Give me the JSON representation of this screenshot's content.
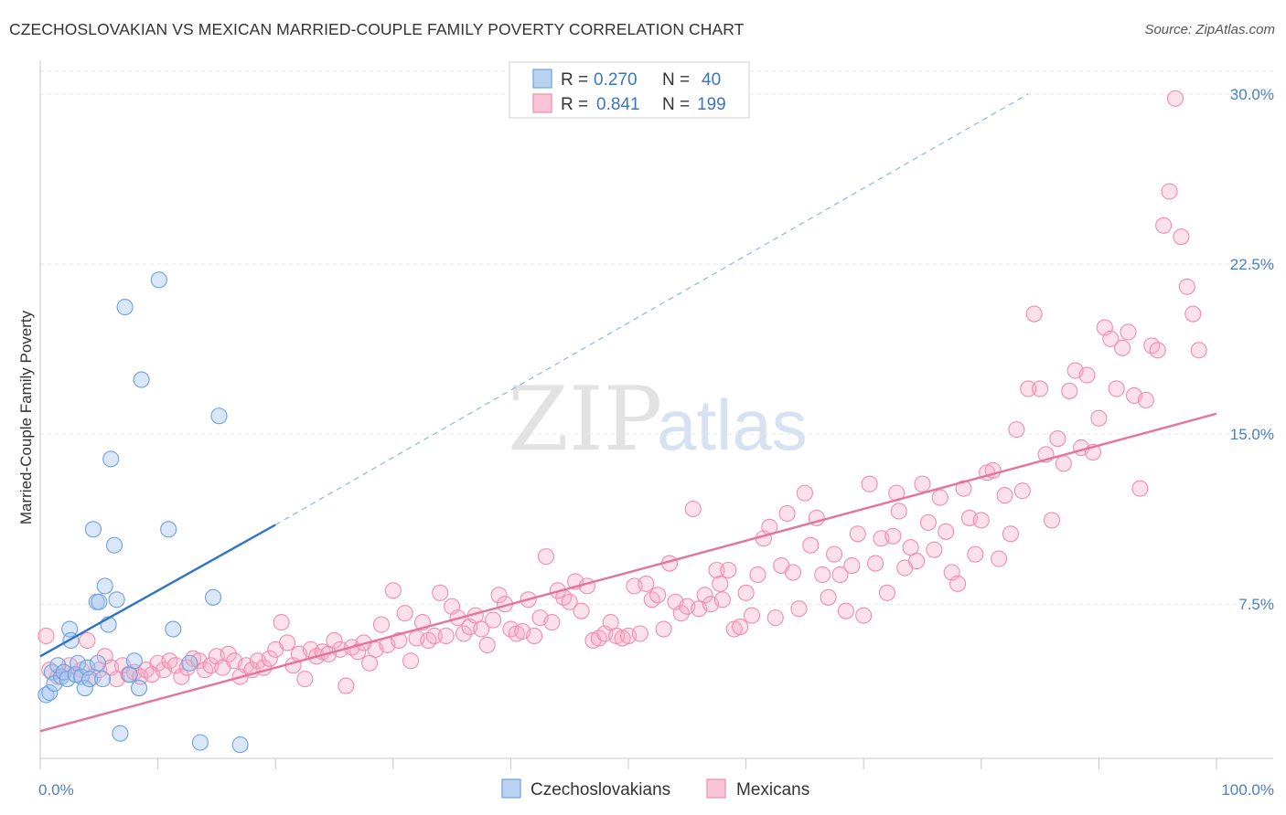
{
  "title": "CZECHOSLOVAKIAN VS MEXICAN MARRIED-COUPLE FAMILY POVERTY CORRELATION CHART",
  "source": "Source: ZipAtlas.com",
  "watermark": {
    "zip": "ZIP",
    "atlas": "atlas"
  },
  "legend": {
    "rows": [
      {
        "r_label": "R =",
        "r_value": "0.270",
        "n_label": "N =",
        "n_value": "40"
      },
      {
        "r_label": "R =",
        "r_value": "0.841",
        "n_label": "N =",
        "n_value": "199"
      }
    ]
  },
  "bottom_legend": [
    "Czechoslovakians",
    "Mexicans"
  ],
  "chart_data": {
    "type": "scatter",
    "title": "CZECHOSLOVAKIAN VS MEXICAN MARRIED-COUPLE FAMILY POVERTY CORRELATION CHART",
    "xlabel": "",
    "ylabel": "Married-Couple Family Poverty",
    "xlim": [
      0,
      100
    ],
    "ylim": [
      0.7,
      31.0
    ],
    "y_ticks": [
      7.5,
      15.0,
      22.5,
      30.0
    ],
    "y_tick_labels": [
      "7.5%",
      "15.0%",
      "22.5%",
      "30.0%"
    ],
    "x_tick_labels": [
      "0.0%",
      "100.0%"
    ],
    "colors": {
      "czech": "#6fa0e0",
      "mexican": "#f08cae",
      "czech_line": "#2e72cc",
      "mexican_line": "#e5739b"
    },
    "series": [
      {
        "name": "Czechoslovakians",
        "R": 0.27,
        "N": 40,
        "trend": {
          "x0": 0,
          "y0": 5.2,
          "x1": 20,
          "y1": 11.0,
          "dash_to_x": 84,
          "dash_to_y": 30.0
        },
        "points": [
          [
            0.5,
            3.5
          ],
          [
            0.8,
            3.6
          ],
          [
            1.0,
            4.5
          ],
          [
            1.2,
            4.0
          ],
          [
            1.5,
            4.8
          ],
          [
            1.8,
            4.3
          ],
          [
            2.0,
            4.5
          ],
          [
            2.3,
            4.2
          ],
          [
            2.5,
            6.4
          ],
          [
            2.6,
            5.9
          ],
          [
            3.0,
            4.4
          ],
          [
            3.2,
            4.9
          ],
          [
            3.5,
            4.3
          ],
          [
            3.8,
            3.8
          ],
          [
            4.0,
            4.7
          ],
          [
            4.2,
            4.2
          ],
          [
            4.5,
            10.8
          ],
          [
            4.8,
            7.6
          ],
          [
            5.0,
            7.6
          ],
          [
            5.3,
            4.2
          ],
          [
            5.5,
            8.3
          ],
          [
            5.8,
            6.6
          ],
          [
            6.0,
            13.9
          ],
          [
            6.3,
            10.1
          ],
          [
            6.5,
            7.7
          ],
          [
            6.8,
            1.8
          ],
          [
            7.2,
            20.6
          ],
          [
            7.6,
            4.4
          ],
          [
            8.0,
            5.0
          ],
          [
            8.4,
            3.8
          ],
          [
            8.6,
            17.4
          ],
          [
            10.1,
            21.8
          ],
          [
            10.9,
            10.8
          ],
          [
            11.3,
            6.4
          ],
          [
            12.7,
            4.9
          ],
          [
            13.6,
            1.4
          ],
          [
            14.7,
            7.8
          ],
          [
            15.2,
            15.8
          ],
          [
            17.0,
            1.3
          ],
          [
            4.9,
            4.9
          ]
        ]
      },
      {
        "name": "Mexicans",
        "R": 0.841,
        "N": 199,
        "trend": {
          "x0": 0,
          "y0": 1.9,
          "x1": 100,
          "y1": 15.9
        },
        "points": [
          [
            0.5,
            6.1
          ],
          [
            0.8,
            4.6
          ],
          [
            1.5,
            4.3
          ],
          [
            2.0,
            4.5
          ],
          [
            2.5,
            4.8
          ],
          [
            3.0,
            4.4
          ],
          [
            3.5,
            4.6
          ],
          [
            4.0,
            5.9
          ],
          [
            4.5,
            4.3
          ],
          [
            5.0,
            4.6
          ],
          [
            5.5,
            5.2
          ],
          [
            6.0,
            4.7
          ],
          [
            6.5,
            4.2
          ],
          [
            7.0,
            4.8
          ],
          [
            7.5,
            4.4
          ],
          [
            8.0,
            4.5
          ],
          [
            8.5,
            4.3
          ],
          [
            9.0,
            4.6
          ],
          [
            9.5,
            4.4
          ],
          [
            10.0,
            4.9
          ],
          [
            10.5,
            4.6
          ],
          [
            11.0,
            5.0
          ],
          [
            11.5,
            4.8
          ],
          [
            12.0,
            4.3
          ],
          [
            12.5,
            4.7
          ],
          [
            13.0,
            5.1
          ],
          [
            13.5,
            5.0
          ],
          [
            14.0,
            4.6
          ],
          [
            14.5,
            4.8
          ],
          [
            15.0,
            5.2
          ],
          [
            15.5,
            4.7
          ],
          [
            16.0,
            5.3
          ],
          [
            16.5,
            5.0
          ],
          [
            17.0,
            4.3
          ],
          [
            17.5,
            4.8
          ],
          [
            18.0,
            4.6
          ],
          [
            18.5,
            5.0
          ],
          [
            19.0,
            4.7
          ],
          [
            19.5,
            5.1
          ],
          [
            20.0,
            5.5
          ],
          [
            20.5,
            6.7
          ],
          [
            21.0,
            5.8
          ],
          [
            21.5,
            4.8
          ],
          [
            22.0,
            5.3
          ],
          [
            22.5,
            4.2
          ],
          [
            23.0,
            5.5
          ],
          [
            23.5,
            5.2
          ],
          [
            24.0,
            5.4
          ],
          [
            24.5,
            5.3
          ],
          [
            25.0,
            5.9
          ],
          [
            25.5,
            5.5
          ],
          [
            26.0,
            3.9
          ],
          [
            26.5,
            5.6
          ],
          [
            27.0,
            5.4
          ],
          [
            27.5,
            5.8
          ],
          [
            28.0,
            4.9
          ],
          [
            28.5,
            5.5
          ],
          [
            29.0,
            6.6
          ],
          [
            29.5,
            5.7
          ],
          [
            30.0,
            8.1
          ],
          [
            30.5,
            5.9
          ],
          [
            31.0,
            7.1
          ],
          [
            31.5,
            5.0
          ],
          [
            32.0,
            6.0
          ],
          [
            32.5,
            6.7
          ],
          [
            33.0,
            5.9
          ],
          [
            33.5,
            6.1
          ],
          [
            34.0,
            8.0
          ],
          [
            34.5,
            6.1
          ],
          [
            35.0,
            7.4
          ],
          [
            35.5,
            6.9
          ],
          [
            36.0,
            6.2
          ],
          [
            36.5,
            6.5
          ],
          [
            37.0,
            7.0
          ],
          [
            37.5,
            6.4
          ],
          [
            38.0,
            5.7
          ],
          [
            38.5,
            6.8
          ],
          [
            39.0,
            7.9
          ],
          [
            39.5,
            7.5
          ],
          [
            40.0,
            6.4
          ],
          [
            40.5,
            6.2
          ],
          [
            41.0,
            6.3
          ],
          [
            41.5,
            7.7
          ],
          [
            42.0,
            6.1
          ],
          [
            42.5,
            6.9
          ],
          [
            43.0,
            9.6
          ],
          [
            43.5,
            6.7
          ],
          [
            44.0,
            8.1
          ],
          [
            44.5,
            7.8
          ],
          [
            45.0,
            7.6
          ],
          [
            45.5,
            8.5
          ],
          [
            46.0,
            7.2
          ],
          [
            46.5,
            8.3
          ],
          [
            47.0,
            5.9
          ],
          [
            47.5,
            6.0
          ],
          [
            48.0,
            6.2
          ],
          [
            48.5,
            6.7
          ],
          [
            49.0,
            6.1
          ],
          [
            49.5,
            6.0
          ],
          [
            50.0,
            6.1
          ],
          [
            50.5,
            8.3
          ],
          [
            51.0,
            6.2
          ],
          [
            51.5,
            8.4
          ],
          [
            52.0,
            7.7
          ],
          [
            52.5,
            7.9
          ],
          [
            53.0,
            6.4
          ],
          [
            53.5,
            9.3
          ],
          [
            54.0,
            7.6
          ],
          [
            54.5,
            7.1
          ],
          [
            55.0,
            7.4
          ],
          [
            55.5,
            11.7
          ],
          [
            56.0,
            7.3
          ],
          [
            56.5,
            7.9
          ],
          [
            57.0,
            7.5
          ],
          [
            57.5,
            9.0
          ],
          [
            58.0,
            7.7
          ],
          [
            58.5,
            9.0
          ],
          [
            59.0,
            6.4
          ],
          [
            59.5,
            6.5
          ],
          [
            60.0,
            8.0
          ],
          [
            60.5,
            7.0
          ],
          [
            61.0,
            8.8
          ],
          [
            61.5,
            10.4
          ],
          [
            62.0,
            10.9
          ],
          [
            62.5,
            6.9
          ],
          [
            63.0,
            9.2
          ],
          [
            63.5,
            11.5
          ],
          [
            64.0,
            8.9
          ],
          [
            64.5,
            7.3
          ],
          [
            65.0,
            12.4
          ],
          [
            65.5,
            10.1
          ],
          [
            66.0,
            11.3
          ],
          [
            66.5,
            8.8
          ],
          [
            67.0,
            7.8
          ],
          [
            67.5,
            9.7
          ],
          [
            68.0,
            8.8
          ],
          [
            68.5,
            7.2
          ],
          [
            69.0,
            9.2
          ],
          [
            69.5,
            10.6
          ],
          [
            70.0,
            7.0
          ],
          [
            70.5,
            12.8
          ],
          [
            71.0,
            9.3
          ],
          [
            71.5,
            10.4
          ],
          [
            72.0,
            8.0
          ],
          [
            72.5,
            10.5
          ],
          [
            73.0,
            11.6
          ],
          [
            73.5,
            9.1
          ],
          [
            74.0,
            10.0
          ],
          [
            74.5,
            9.4
          ],
          [
            75.0,
            12.8
          ],
          [
            75.5,
            11.1
          ],
          [
            76.0,
            9.9
          ],
          [
            76.5,
            12.2
          ],
          [
            77.0,
            10.7
          ],
          [
            77.5,
            8.9
          ],
          [
            78.0,
            8.4
          ],
          [
            78.5,
            12.6
          ],
          [
            79.0,
            11.3
          ],
          [
            79.5,
            9.7
          ],
          [
            80.0,
            11.2
          ],
          [
            80.5,
            13.3
          ],
          [
            81.0,
            13.4
          ],
          [
            81.5,
            9.5
          ],
          [
            82.0,
            12.3
          ],
          [
            82.5,
            10.6
          ],
          [
            83.0,
            15.2
          ],
          [
            83.5,
            12.5
          ],
          [
            84.0,
            17.0
          ],
          [
            84.5,
            20.3
          ],
          [
            85.0,
            17.0
          ],
          [
            85.5,
            14.1
          ],
          [
            86.0,
            11.2
          ],
          [
            86.5,
            14.8
          ],
          [
            87.0,
            13.7
          ],
          [
            87.5,
            16.9
          ],
          [
            88.0,
            17.8
          ],
          [
            88.5,
            14.4
          ],
          [
            89.0,
            17.6
          ],
          [
            89.5,
            14.2
          ],
          [
            90.0,
            15.7
          ],
          [
            90.5,
            19.7
          ],
          [
            91.0,
            19.2
          ],
          [
            91.5,
            17.0
          ],
          [
            92.0,
            18.8
          ],
          [
            92.5,
            19.5
          ],
          [
            93.0,
            16.7
          ],
          [
            93.5,
            12.6
          ],
          [
            94.0,
            16.5
          ],
          [
            94.5,
            18.9
          ],
          [
            95.0,
            18.7
          ],
          [
            95.5,
            24.2
          ],
          [
            96.0,
            25.7
          ],
          [
            96.5,
            29.8
          ],
          [
            97.0,
            23.7
          ],
          [
            97.5,
            21.5
          ],
          [
            98.0,
            20.3
          ],
          [
            98.5,
            18.7
          ],
          [
            72.8,
            12.4
          ],
          [
            57.8,
            8.4
          ]
        ]
      }
    ],
    "plot_area": "framed left/bottom axes, dashed horizontal gridlines",
    "legend_position": "top-center"
  }
}
